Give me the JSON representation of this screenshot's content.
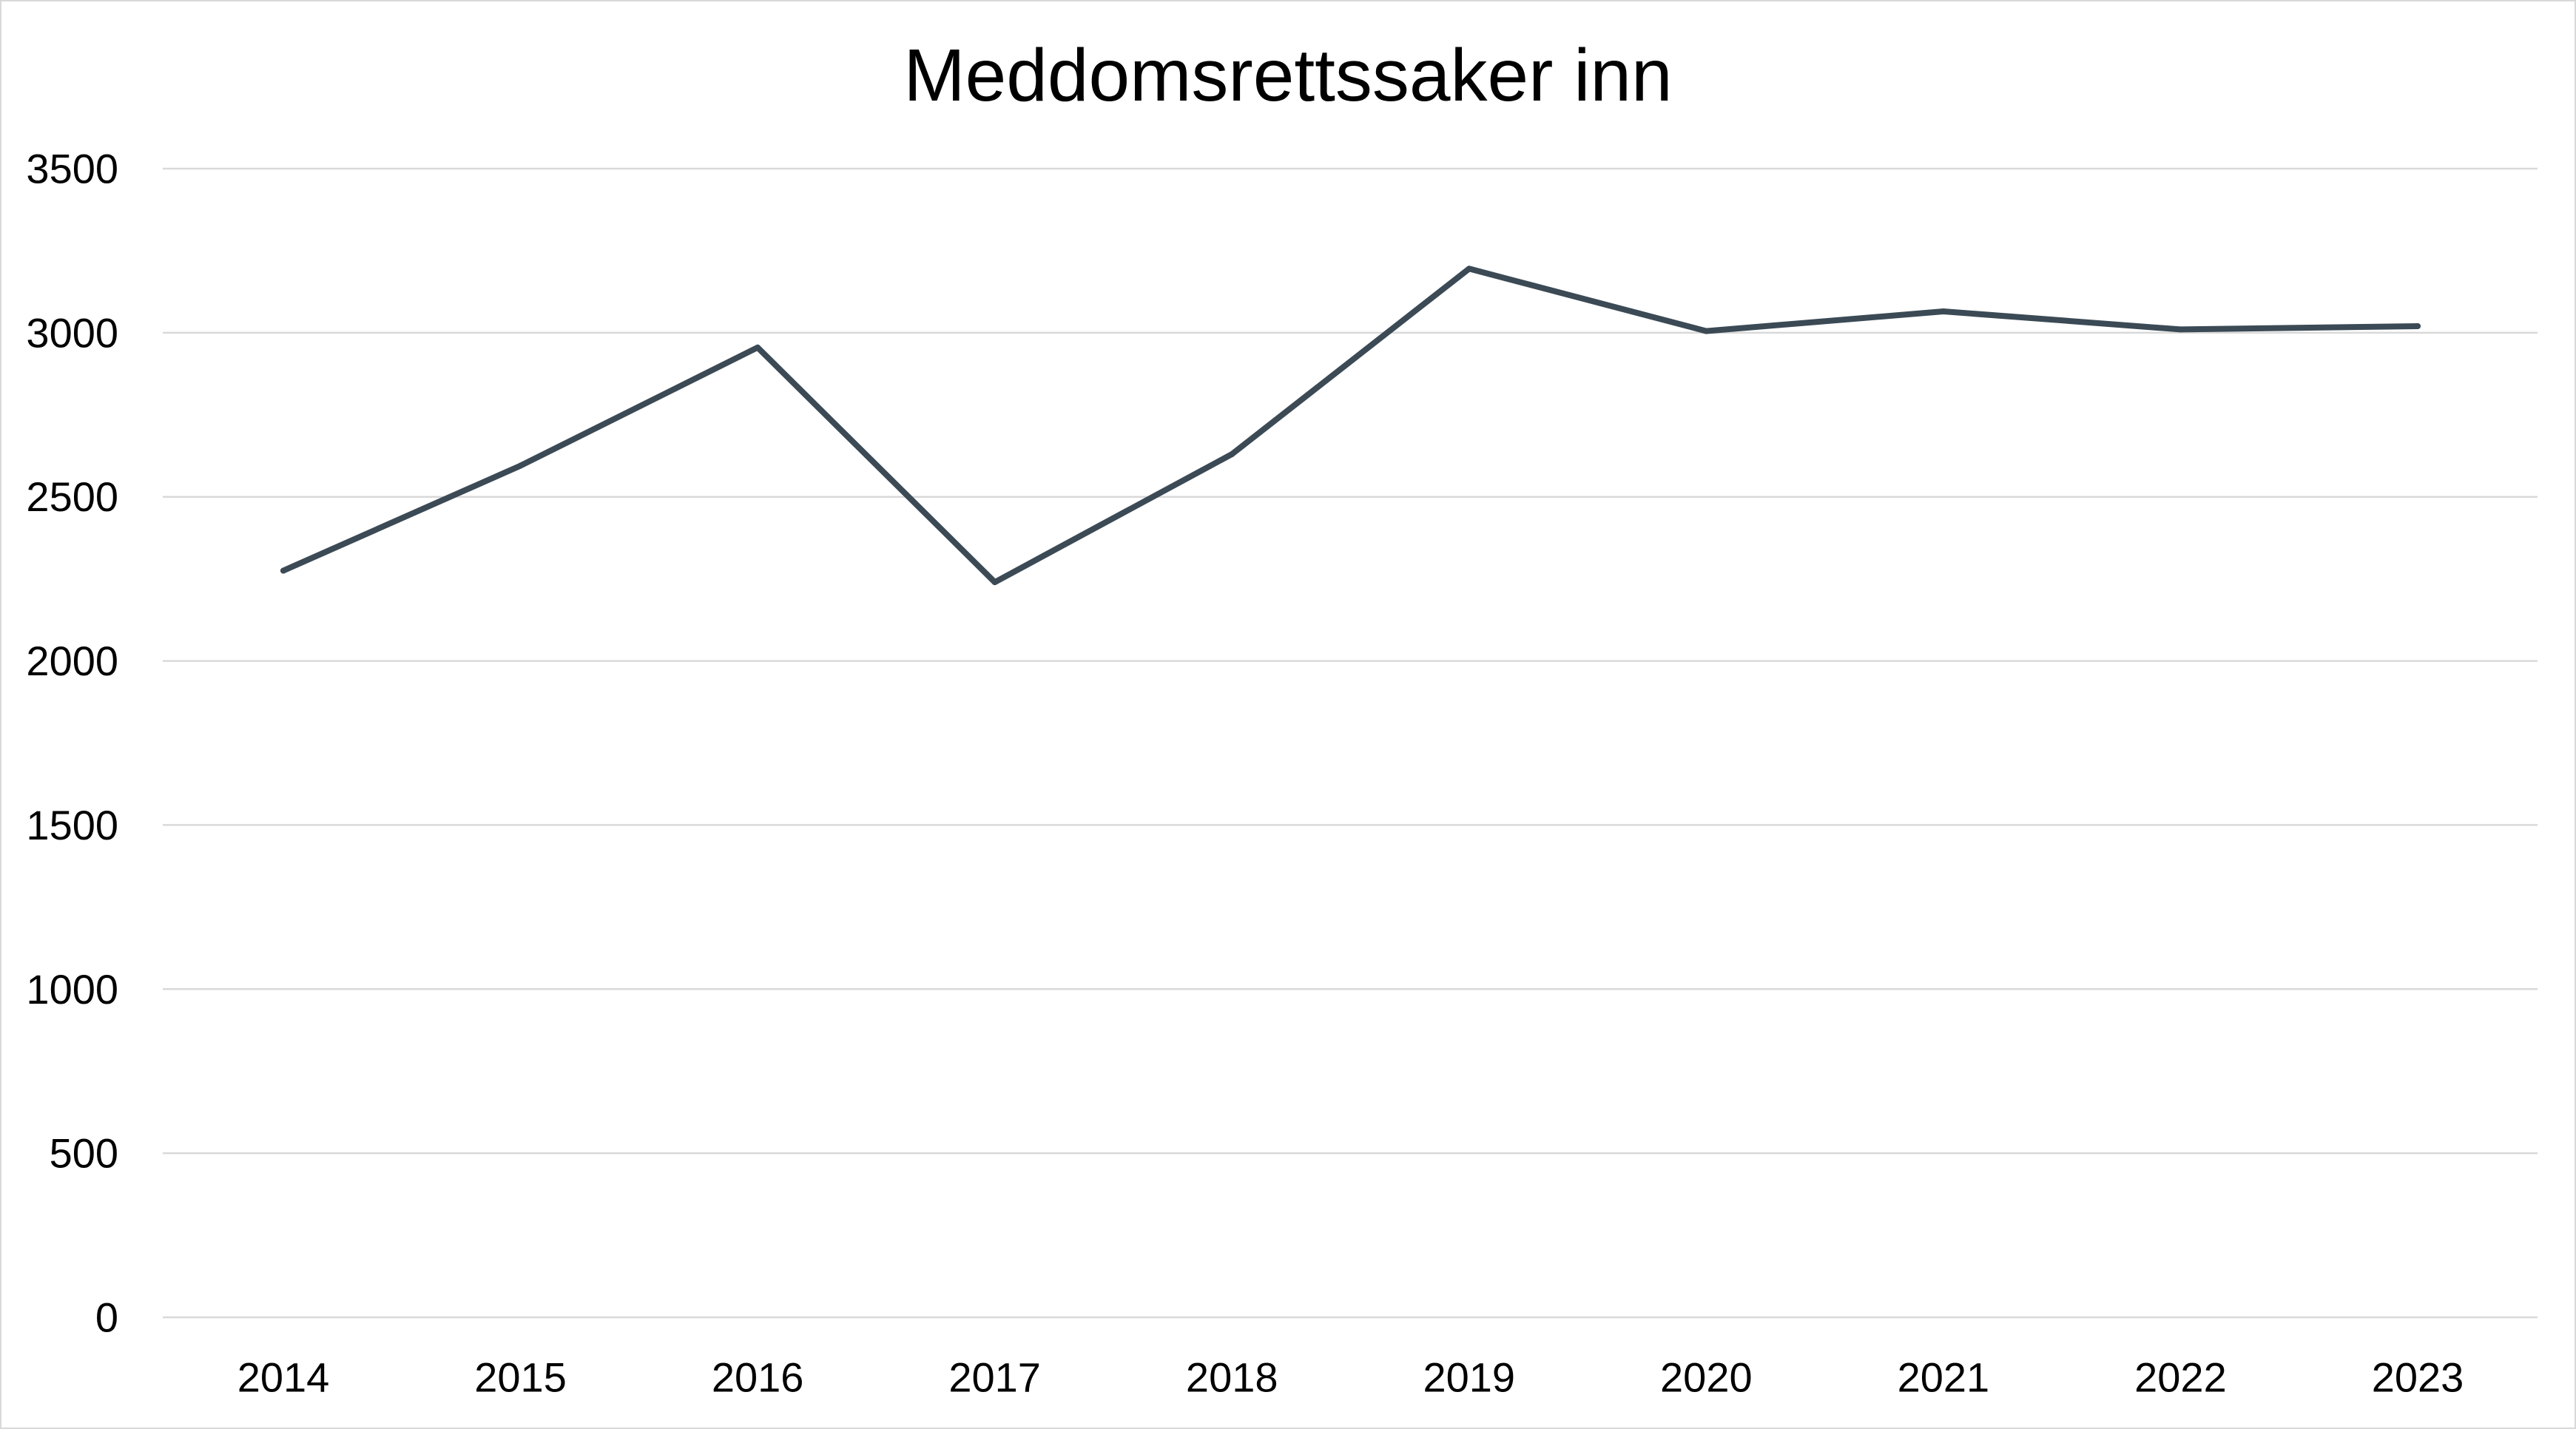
{
  "chart_data": {
    "type": "line",
    "title": "Meddomsrettssaker inn",
    "xlabel": "",
    "ylabel": "",
    "categories": [
      "2014",
      "2015",
      "2016",
      "2017",
      "2018",
      "2019",
      "2020",
      "2021",
      "2022",
      "2023"
    ],
    "series": [
      {
        "values": [
          2275,
          2595,
          2955,
          2240,
          2630,
          3195,
          3005,
          3065,
          3010,
          3020
        ],
        "color": "#3b4a55"
      }
    ],
    "ylim": [
      0,
      3500
    ],
    "yticks": [
      0,
      500,
      1000,
      1500,
      2000,
      2500,
      3000,
      3500
    ],
    "grid": true,
    "legend": "none"
  }
}
